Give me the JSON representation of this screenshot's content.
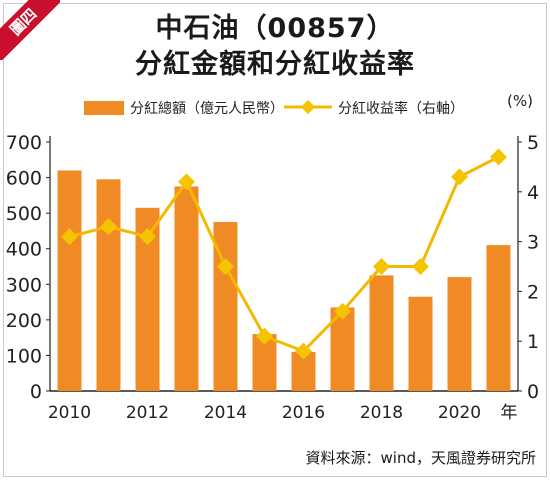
{
  "badge": "圖四",
  "title_line1": "中石油（00857）",
  "title_line2": "分紅金額和分紅收益率",
  "legend": {
    "bar_label": "分紅總額（億元人民幣）",
    "line_label": "分紅收益率（右軸）"
  },
  "right_unit": "(%)",
  "source": "資料來源：wind，天風證券研究所",
  "colors": {
    "bar": "#f08a24",
    "line": "#f5b800",
    "marker": "#f5c400",
    "badge": "#c8102e"
  },
  "chart_data": {
    "type": "bar+line",
    "x": [
      "2010",
      "2011",
      "2012",
      "2013",
      "2014",
      "2015",
      "2016",
      "2017",
      "2018",
      "2019",
      "2020",
      "2021"
    ],
    "bar_values": [
      620,
      595,
      515,
      575,
      475,
      160,
      110,
      235,
      325,
      265,
      320,
      410
    ],
    "line_values": [
      3.1,
      3.3,
      3.1,
      4.2,
      2.5,
      1.1,
      0.8,
      1.6,
      2.5,
      2.5,
      4.3,
      4.7
    ],
    "x_tick_labels": [
      "2010",
      "2012",
      "2014",
      "2016",
      "2018",
      "2020"
    ],
    "x_unit": "年",
    "y_left": {
      "ticks": [
        0,
        100,
        200,
        300,
        400,
        500,
        600,
        700
      ],
      "range": [
        0,
        700
      ]
    },
    "y_right": {
      "ticks": [
        0,
        1,
        2,
        3,
        4,
        5
      ],
      "range": [
        0,
        5
      ]
    },
    "grid": false,
    "legend_position": "top"
  }
}
